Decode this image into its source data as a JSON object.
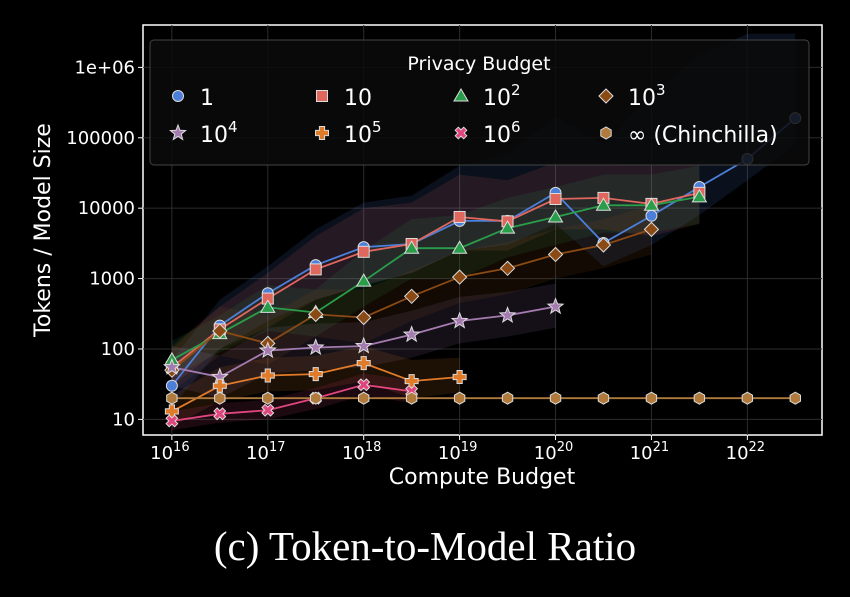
{
  "caption": "(c) Token-to-Model Ratio",
  "chart_data": {
    "type": "line",
    "title": "",
    "xlabel": "Compute Budget",
    "ylabel": "Tokens / Model Size",
    "xscale": "log",
    "yscale": "log",
    "xlim": [
      5000000000000000.0,
      6e+22
    ],
    "ylim": [
      6,
      4000000.0
    ],
    "grid": true,
    "x_ticks": [
      {
        "base": "10",
        "exp": "16"
      },
      {
        "base": "10",
        "exp": "17"
      },
      {
        "base": "10",
        "exp": "18"
      },
      {
        "base": "10",
        "exp": "19"
      },
      {
        "base": "10",
        "exp": "20"
      },
      {
        "base": "10",
        "exp": "21"
      },
      {
        "base": "10",
        "exp": "22"
      }
    ],
    "y_ticks": [
      "10",
      "100",
      "1000",
      "10000",
      "100000",
      "1e+06"
    ],
    "legend": {
      "title": "Privacy Budget",
      "placement": "top",
      "entries": [
        {
          "base": "1",
          "exp": ""
        },
        {
          "base": "10",
          "exp": ""
        },
        {
          "base": "10",
          "exp": "2"
        },
        {
          "base": "10",
          "exp": "3"
        },
        {
          "base": "10",
          "exp": "4"
        },
        {
          "base": "10",
          "exp": "5"
        },
        {
          "base": "10",
          "exp": "6"
        },
        {
          "base": "∞ (Chinchilla)",
          "exp": ""
        }
      ]
    },
    "series": [
      {
        "name": "1",
        "color": "#4c7fd9",
        "marker": "circle",
        "x": [
          1e+16,
          3.16e+16,
          1e+17,
          3.16e+17,
          1e+18,
          3.16e+18,
          1e+19,
          3.16e+19,
          1e+20,
          3.16e+20,
          1e+21,
          3.16e+21,
          1e+22,
          3.16e+22
        ],
        "y": [
          30,
          215,
          620,
          1550,
          2800,
          3100,
          6600,
          6600,
          16500,
          3200,
          7800,
          20000,
          50000,
          190000
        ],
        "band_lo": [
          15,
          100,
          250,
          500,
          800,
          1200,
          2500,
          3000,
          6000,
          1500,
          3000,
          8000,
          25000,
          80000
        ],
        "band_hi": [
          70,
          500,
          1500,
          5000,
          12000,
          15000,
          40000,
          60000,
          200000,
          80000,
          400000,
          1500000,
          3000000,
          3000000
        ]
      },
      {
        "name": "10",
        "color": "#e0675e",
        "marker": "square",
        "x": [
          1e+16,
          3.16e+16,
          1e+17,
          3.16e+17,
          1e+18,
          3.16e+18,
          1e+19,
          3.16e+19,
          1e+20,
          3.16e+20,
          1e+21,
          3.16e+21
        ],
        "y": [
          55,
          190,
          520,
          1350,
          2400,
          3100,
          7500,
          6500,
          13500,
          14000,
          11500,
          16500
        ],
        "band_lo": [
          30,
          100,
          200,
          500,
          800,
          1200,
          2500,
          2500,
          5000,
          5000,
          4000,
          6000
        ],
        "band_hi": [
          110,
          400,
          1200,
          4000,
          10000,
          12000,
          30000,
          25000,
          45000,
          45000,
          40000,
          45000
        ]
      },
      {
        "name": "10^2",
        "color": "#2a9d4b",
        "marker": "triangle",
        "x": [
          1e+16,
          3.16e+16,
          1e+17,
          3.16e+17,
          1e+18,
          3.16e+18,
          1e+19,
          3.16e+19,
          1e+20,
          3.16e+20,
          1e+21,
          3.16e+21
        ],
        "y": [
          70,
          165,
          390,
          330,
          920,
          2700,
          2700,
          5200,
          7500,
          11000,
          11000,
          14500
        ],
        "band_lo": [
          40,
          90,
          180,
          150,
          400,
          1000,
          1000,
          2000,
          3000,
          4500,
          4500,
          6000
        ],
        "band_hi": [
          130,
          300,
          800,
          700,
          2500,
          7000,
          8000,
          14000,
          20000,
          30000,
          30000,
          40000
        ]
      },
      {
        "name": "10^3",
        "color": "#8b4a14",
        "marker": "diamond",
        "x": [
          1e+16,
          3.16e+16,
          1e+17,
          3.16e+17,
          1e+18,
          3.16e+18,
          1e+19,
          3.16e+19,
          1e+20,
          3.16e+20,
          1e+21
        ],
        "y": [
          50,
          180,
          120,
          310,
          280,
          560,
          1050,
          1400,
          2200,
          3000,
          5000
        ],
        "band_lo": [
          25,
          80,
          60,
          150,
          120,
          250,
          450,
          600,
          1000,
          1400,
          2200
        ],
        "band_hi": [
          100,
          400,
          300,
          700,
          700,
          1300,
          2500,
          3300,
          5000,
          7000,
          11000
        ]
      },
      {
        "name": "10^4",
        "color": "#a47bb0",
        "marker": "star",
        "x": [
          1e+16,
          3.16e+16,
          1e+17,
          3.16e+17,
          1e+18,
          3.16e+18,
          1e+19,
          3.16e+19,
          1e+20
        ],
        "y": [
          55,
          40,
          95,
          105,
          110,
          160,
          250,
          300,
          400
        ],
        "band_lo": [
          30,
          20,
          45,
          50,
          55,
          75,
          120,
          150,
          200
        ],
        "band_hi": [
          110,
          80,
          200,
          230,
          240,
          350,
          550,
          650,
          850
        ]
      },
      {
        "name": "10^5",
        "color": "#e07b2a",
        "marker": "plus",
        "x": [
          1e+16,
          3.16e+16,
          1e+17,
          3.16e+17,
          1e+18,
          3.16e+18,
          1e+19
        ],
        "y": [
          13,
          30,
          42,
          44,
          63,
          35,
          40
        ],
        "band_lo": [
          8,
          18,
          25,
          26,
          35,
          20,
          24
        ],
        "band_hi": [
          22,
          55,
          75,
          80,
          110,
          70,
          75
        ]
      },
      {
        "name": "10^6",
        "color": "#e0457e",
        "marker": "x",
        "x": [
          1e+16,
          3.16e+16,
          1e+17,
          3.16e+17,
          1e+18,
          3.16e+18
        ],
        "y": [
          9.5,
          12,
          13.5,
          20,
          31,
          25
        ],
        "band_lo": [
          7,
          9,
          10,
          14,
          22,
          17
        ],
        "band_hi": [
          13,
          17,
          19,
          28,
          45,
          36
        ]
      },
      {
        "name": "∞ (Chinchilla)",
        "color": "#b07a3c",
        "marker": "hexagon",
        "x": [
          1e+16,
          3.16e+16,
          1e+17,
          3.16e+17,
          1e+18,
          3.16e+18,
          1e+19,
          3.16e+19,
          1e+20,
          3.16e+20,
          1e+21,
          3.16e+21,
          1e+22,
          3.16e+22
        ],
        "y": [
          20,
          20,
          20,
          20,
          20,
          20,
          20,
          20,
          20,
          20,
          20,
          20,
          20,
          20
        ]
      }
    ]
  }
}
